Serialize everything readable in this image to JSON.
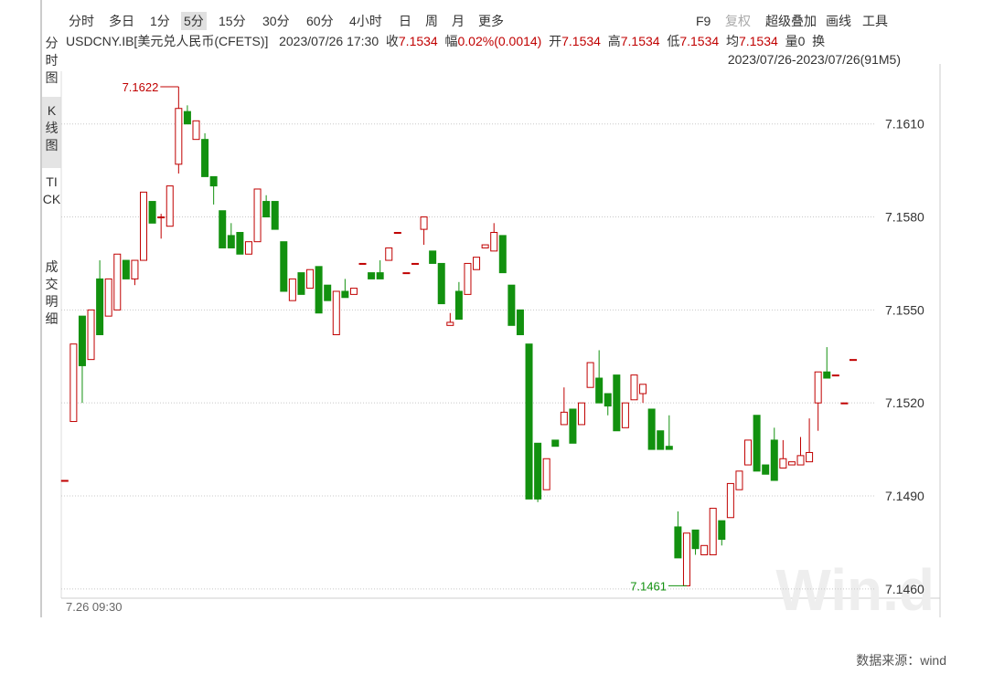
{
  "toolbar": {
    "tabs": [
      "分时",
      "多日",
      "1分",
      "5分",
      "15分",
      "30分",
      "60分",
      "4小时",
      "日",
      "周",
      "月",
      "更多"
    ],
    "tools": [
      "F9",
      "复权",
      "超级叠加",
      "画线",
      "工具"
    ]
  },
  "side_tabs": [
    "分时图",
    "K线图",
    "TICK",
    "成交明细"
  ],
  "info": {
    "symbol": "USDCNY.IB[美元兑人民币(CFETS)]",
    "time": "2023/07/26 17:30",
    "close_label": "收",
    "close": "7.1534",
    "change_label": "幅",
    "change": "0.02%(0.0014)",
    "open_label": "开",
    "open": "7.1534",
    "high_label": "高",
    "high": "7.1534",
    "low_label": "低",
    "low": "7.1534",
    "avg_label": "均",
    "avg": "7.1534",
    "volume_label": "量",
    "volume": "0",
    "turnover_label": "换",
    "range": "2023/07/26-2023/07/26(91M5)"
  },
  "watermark": "Win.d",
  "source": "数据来源：wind",
  "chart_data": {
    "type": "candlestick",
    "up_color": "#c00000",
    "down_color": "#12910f",
    "grid": true,
    "categories": [
      "7.26 09:30",
      null,
      null,
      null,
      null,
      null,
      null,
      null,
      null,
      null,
      null,
      null,
      null,
      null,
      null,
      null,
      null,
      null,
      null,
      null,
      null,
      null,
      null,
      null,
      null,
      null,
      null,
      null,
      null,
      null,
      null,
      null,
      null,
      null,
      null,
      null,
      null,
      null,
      null,
      null,
      null,
      null,
      null,
      null,
      null,
      null,
      null,
      null,
      null,
      null,
      null,
      null,
      null,
      null,
      null,
      null,
      null,
      null,
      null,
      null,
      null,
      null,
      null,
      null,
      null,
      null,
      null,
      null,
      null,
      null,
      null,
      null,
      null,
      null,
      null,
      null,
      null,
      null,
      null,
      null,
      null,
      null,
      null,
      null,
      null,
      null,
      null,
      null,
      null,
      null,
      null
    ],
    "open": [
      7.1495,
      7.1514,
      7.1548,
      7.1534,
      7.156,
      7.1548,
      7.155,
      7.1566,
      7.156,
      7.1566,
      7.1585,
      7.158,
      7.1577,
      7.1597,
      7.1614,
      7.1605,
      7.1605,
      7.1593,
      7.1582,
      7.1574,
      7.1575,
      7.1568,
      7.1572,
      7.1585,
      7.1585,
      7.1572,
      7.1553,
      7.1562,
      7.1557,
      7.1564,
      7.1558,
      7.1542,
      7.1556,
      7.1555,
      7.1565,
      7.1562,
      7.1562,
      7.1566,
      7.1575,
      7.1562,
      7.1565,
      7.1576,
      7.1569,
      7.1565,
      7.1545,
      7.1556,
      7.1555,
      7.1563,
      7.157,
      7.1569,
      7.1574,
      7.1558,
      7.155,
      7.1539,
      7.1507,
      7.1492,
      7.1508,
      7.1513,
      7.1518,
      7.1513,
      7.1525,
      7.1528,
      7.1523,
      7.1529,
      7.1512,
      7.1521,
      7.1523,
      7.1518,
      7.1511,
      7.1506,
      7.148,
      7.1461,
      7.1479,
      7.1471,
      7.1471,
      7.1482,
      7.1483,
      7.1492,
      7.15,
      7.1516,
      7.15,
      7.1508,
      7.1499,
      7.15,
      7.15,
      7.1501,
      7.152,
      7.153,
      7.1529,
      7.152,
      7.1534
    ],
    "high": [
      7.1495,
      7.1539,
      7.1548,
      7.155,
      7.1566,
      7.156,
      7.1568,
      7.1566,
      7.1566,
      7.1588,
      7.1585,
      7.1581,
      7.159,
      7.1622,
      7.1616,
      7.1611,
      7.1607,
      7.1593,
      7.1582,
      7.1578,
      7.1575,
      7.1572,
      7.1589,
      7.1587,
      7.1585,
      7.1572,
      7.156,
      7.1562,
      7.1563,
      7.1564,
      7.1558,
      7.1556,
      7.156,
      7.1557,
      7.1565,
      7.1562,
      7.1566,
      7.157,
      7.1575,
      7.1562,
      7.1565,
      7.158,
      7.1569,
      7.1565,
      7.1549,
      7.1559,
      7.1565,
      7.1567,
      7.1571,
      7.1578,
      7.1574,
      7.1558,
      7.155,
      7.1539,
      7.1507,
      7.1502,
      7.1508,
      7.1525,
      7.1518,
      7.152,
      7.1533,
      7.1537,
      7.1523,
      7.1529,
      7.152,
      7.1529,
      7.1526,
      7.1518,
      7.1511,
      7.1516,
      7.1485,
      7.1478,
      7.1479,
      7.1474,
      7.1486,
      7.1482,
      7.1494,
      7.1498,
      7.1508,
      7.1516,
      7.15,
      7.1512,
      7.1508,
      7.1501,
      7.1509,
      7.1515,
      7.153,
      7.1538,
      7.1529,
      7.152,
      7.1534
    ],
    "low": [
      7.1495,
      7.1514,
      7.152,
      7.1534,
      7.1542,
      7.1548,
      7.155,
      7.156,
      7.1558,
      7.1566,
      7.1578,
      7.1573,
      7.1577,
      7.1594,
      7.161,
      7.1605,
      7.1593,
      7.1584,
      7.157,
      7.157,
      7.1568,
      7.1568,
      7.1572,
      7.158,
      7.1576,
      7.1556,
      7.1553,
      7.1555,
      7.1557,
      7.1549,
      7.1553,
      7.1542,
      7.1554,
      7.1555,
      7.1565,
      7.156,
      7.156,
      7.1566,
      7.1575,
      7.1562,
      7.1565,
      7.1571,
      7.1565,
      7.1552,
      7.1545,
      7.1547,
      7.1555,
      7.1563,
      7.157,
      7.1569,
      7.1562,
      7.1545,
      7.1542,
      7.1489,
      7.1488,
      7.1492,
      7.1506,
      7.1513,
      7.1507,
      7.1513,
      7.1525,
      7.152,
      7.1516,
      7.1511,
      7.1512,
      7.1521,
      7.152,
      7.1505,
      7.1505,
      7.1505,
      7.147,
      7.1461,
      7.1471,
      7.1471,
      7.1471,
      7.1474,
      7.1483,
      7.1492,
      7.15,
      7.1498,
      7.1497,
      7.1495,
      7.1499,
      7.15,
      7.15,
      7.1501,
      7.1511,
      7.1528,
      7.1529,
      7.152,
      7.1534
    ],
    "close": [
      7.1495,
      7.1539,
      7.1532,
      7.155,
      7.1542,
      7.156,
      7.1568,
      7.156,
      7.1566,
      7.1588,
      7.1578,
      7.158,
      7.159,
      7.1615,
      7.161,
      7.1611,
      7.1593,
      7.159,
      7.157,
      7.157,
      7.1568,
      7.1572,
      7.1589,
      7.158,
      7.1576,
      7.1556,
      7.156,
      7.1555,
      7.1563,
      7.1549,
      7.1553,
      7.1556,
      7.1554,
      7.1557,
      7.1565,
      7.156,
      7.156,
      7.157,
      7.1575,
      7.1562,
      7.1565,
      7.158,
      7.1565,
      7.1552,
      7.1546,
      7.1547,
      7.1565,
      7.1567,
      7.1571,
      7.1575,
      7.1562,
      7.1545,
      7.1542,
      7.1489,
      7.1489,
      7.1502,
      7.1506,
      7.1517,
      7.1507,
      7.152,
      7.1533,
      7.152,
      7.1519,
      7.1511,
      7.152,
      7.1529,
      7.1526,
      7.1505,
      7.1505,
      7.1505,
      7.147,
      7.1478,
      7.1473,
      7.1474,
      7.1486,
      7.1476,
      7.1494,
      7.1498,
      7.1508,
      7.1498,
      7.1497,
      7.1495,
      7.1502,
      7.1501,
      7.1503,
      7.1504,
      7.153,
      7.1528,
      7.1529,
      7.152,
      7.1534
    ],
    "ylim": [
      7.1457,
      7.1627
    ],
    "yticks": [
      {
        "value": 7.146,
        "label": "7.1460"
      },
      {
        "value": 7.149,
        "label": "7.1490"
      },
      {
        "value": 7.152,
        "label": "7.1520"
      },
      {
        "value": 7.155,
        "label": "7.1550"
      },
      {
        "value": 7.158,
        "label": "7.1580"
      },
      {
        "value": 7.161,
        "label": "7.1610"
      }
    ]
  }
}
